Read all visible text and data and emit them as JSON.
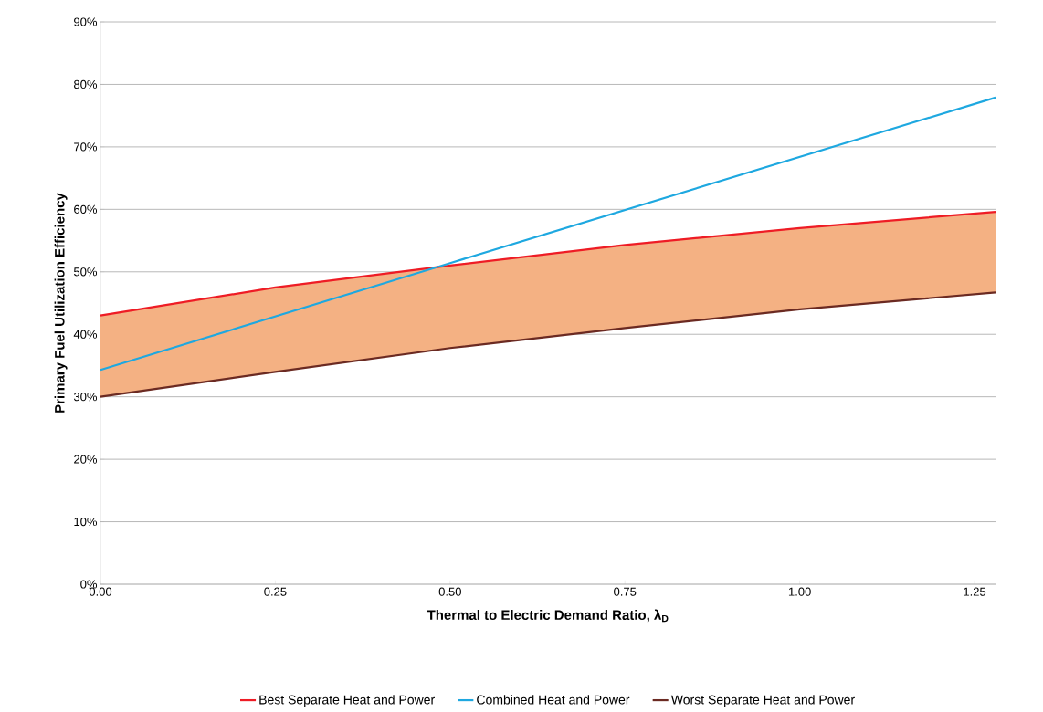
{
  "chart_data": {
    "type": "line",
    "xlabel": "Thermal to Electric Demand Ratio, λ$_{D}$",
    "ylabel": "Primary Fuel Utilization Efficiency",
    "xlim": [
      0,
      1.28
    ],
    "xticks": [
      {
        "value": 0,
        "label": "0.00"
      },
      {
        "value": 0.25,
        "label": "0.25"
      },
      {
        "value": 0.5,
        "label": "0.50"
      },
      {
        "value": 0.75,
        "label": "0.75"
      },
      {
        "value": 1.0,
        "label": "1.00"
      },
      {
        "value": 1.25,
        "label": "1.25"
      }
    ],
    "ylim": [
      0,
      90
    ],
    "yticks": [
      {
        "value": 0,
        "label": "0%"
      },
      {
        "value": 10,
        "label": "10%"
      },
      {
        "value": 20,
        "label": "20%"
      },
      {
        "value": 30,
        "label": "30%"
      },
      {
        "value": 40,
        "label": "40%"
      },
      {
        "value": 50,
        "label": "50%"
      },
      {
        "value": 60,
        "label": "60%"
      },
      {
        "value": 70,
        "label": "70%"
      },
      {
        "value": 80,
        "label": "80%"
      },
      {
        "value": 90,
        "label": "90%"
      }
    ],
    "grid": "y",
    "legend": "bottom",
    "marker": "none",
    "line_style": "solid",
    "series": [
      {
        "name": "Best Separate Heat and Power",
        "color": "#ee1c25",
        "x": [
          0,
          0.25,
          0.5,
          0.75,
          1.0,
          1.28
        ],
        "values": [
          43,
          47.5,
          51,
          54.3,
          57,
          59.6
        ],
        "lower": [
          30,
          34,
          37.8,
          41,
          44,
          46.7
        ],
        "upper": [
          43,
          47.5,
          51,
          54.3,
          57,
          59.6
        ]
      },
      {
        "name": "Combined Heat and Power",
        "color": "#1ea8e0",
        "x": [
          0,
          0.5,
          1.28
        ],
        "values": [
          34.3,
          51.4,
          77.9
        ]
      },
      {
        "name": "Worst Separate Heat and Power",
        "color": "#6b2a22",
        "x": [
          0,
          0.25,
          0.5,
          0.75,
          1.0,
          1.28
        ],
        "values": [
          30,
          34,
          37.8,
          41,
          44,
          46.7
        ]
      }
    ]
  }
}
